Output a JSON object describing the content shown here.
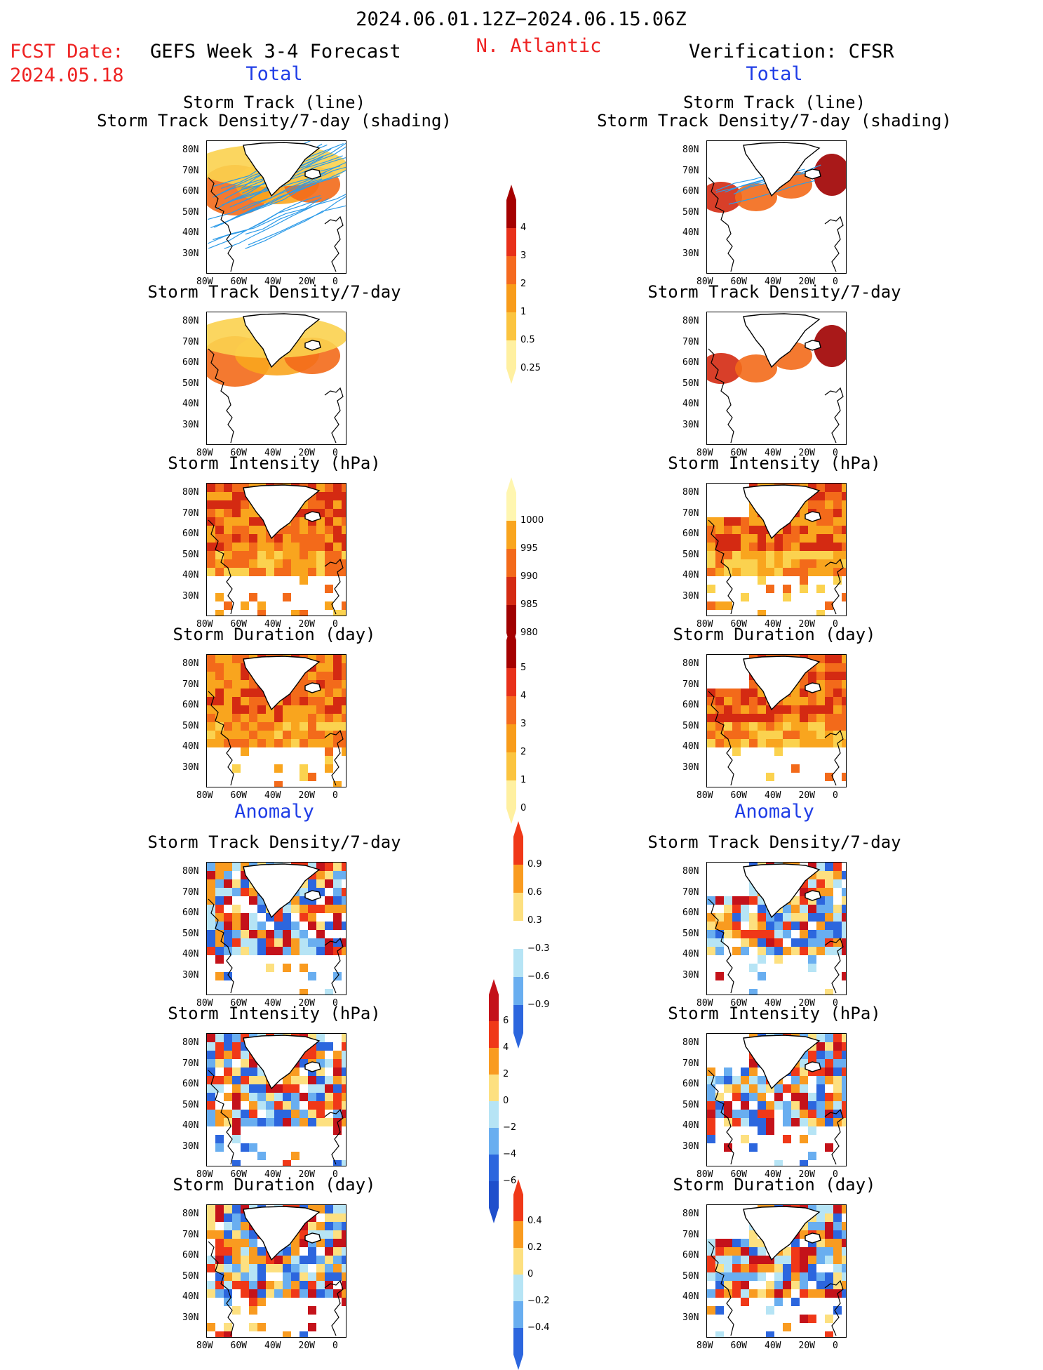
{
  "header": {
    "date_range": "2024.06.01.12Z−2024.06.15.06Z",
    "fcst_label": "FCST Date:",
    "fcst_date": "2024.05.18",
    "left_title": "GEFS Week 3-4 Forecast",
    "region": "N. Atlantic",
    "right_title": "Verification: CFSR"
  },
  "sections": {
    "total_label": "Total",
    "anomaly_label": "Anomaly"
  },
  "panel_titles": {
    "track_1": "Storm Track (line)",
    "track_2": "Storm Track Density/7-day (shading)",
    "density": "Storm Track Density/7-day",
    "intensity": "Storm Intensity (hPa)",
    "duration": "Storm Duration (day)"
  },
  "axes": {
    "lat_ticks": [
      "80N",
      "70N",
      "60N",
      "50N",
      "40N",
      "30N"
    ],
    "lon_ticks": [
      "80W",
      "60W",
      "40W",
      "20W",
      "0"
    ]
  },
  "colorbars": [
    {
      "name": "total-density",
      "labels": [
        "4",
        "3",
        "2",
        "1",
        "0.5",
        "0.25"
      ],
      "colors": [
        "#a50000",
        "#e8301a",
        "#f56a1f",
        "#f89c1a",
        "#fbc43f",
        "#fff0a0"
      ]
    },
    {
      "name": "total-intensity",
      "labels": [
        "1000",
        "995",
        "990",
        "985",
        "980"
      ],
      "colors": [
        "#fff6b0",
        "#f9a51e",
        "#f36a1a",
        "#d42a12",
        "#a00000"
      ]
    },
    {
      "name": "total-duration",
      "labels": [
        "5",
        "4",
        "3",
        "2",
        "1",
        "0"
      ],
      "colors": [
        "#a50000",
        "#e8301a",
        "#f56a1f",
        "#f89c1a",
        "#fbc43f",
        "#fff0a0"
      ]
    },
    {
      "name": "anom-density",
      "labels": [
        "0.9",
        "0.6",
        "0.3",
        "−0.3",
        "−0.6",
        "−0.9"
      ],
      "colors": [
        "#f03818",
        "#f99b20",
        "#fde080",
        "#ffffff",
        "#b6e4f5",
        "#69aef0",
        "#2c66de"
      ]
    },
    {
      "name": "anom-intensity",
      "labels": [
        "6",
        "4",
        "2",
        "0",
        "−2",
        "−4",
        "−6"
      ],
      "colors": [
        "#c4121a",
        "#f03818",
        "#f99b20",
        "#fde080",
        "#b6e4f5",
        "#69aef0",
        "#2c66de",
        "#1f4fcc"
      ]
    },
    {
      "name": "anom-duration",
      "labels": [
        "0.4",
        "0.2",
        "0",
        "−0.2",
        "−0.4"
      ],
      "colors": [
        "#f03818",
        "#f99b20",
        "#fde080",
        "#b6e4f5",
        "#69aef0",
        "#2c66de"
      ]
    }
  ]
}
